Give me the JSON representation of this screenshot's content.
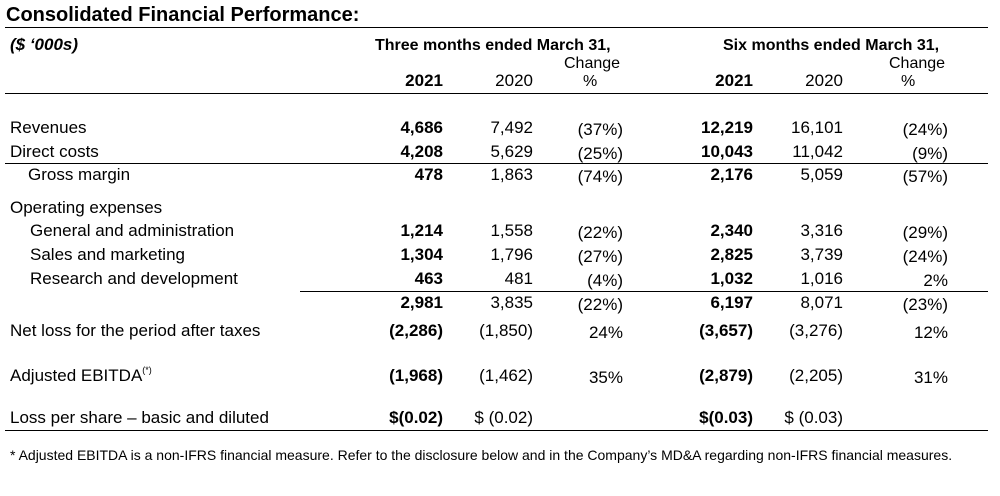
{
  "title": "Consolidated Financial Performance:",
  "unit": "($ ‘000s)",
  "headers": {
    "three_months": "Three months ended March 31,",
    "six_months": "Six months ended March 31,",
    "change": "Change",
    "pct": "%",
    "y2021": "2021",
    "y2020": "2020"
  },
  "rows": {
    "revenues": {
      "label": "Revenues",
      "q21": "4,686",
      "q20": "7,492",
      "qc": "(37%)",
      "s21": "12,219",
      "s20": "16,101",
      "sc": "(24%)"
    },
    "direct_costs": {
      "label": "Direct costs",
      "q21": "4,208",
      "q20": "5,629",
      "qc": "(25%)",
      "s21": "10,043",
      "s20": "11,042",
      "sc": "(9%)"
    },
    "gross_margin": {
      "label": "Gross margin",
      "q21": "478",
      "q20": "1,863",
      "qc": "(74%)",
      "s21": "2,176",
      "s20": "5,059",
      "sc": "(57%)"
    },
    "opex_heading": {
      "label": "Operating expenses"
    },
    "gen_admin": {
      "label": "General and administration",
      "q21": "1,214",
      "q20": "1,558",
      "qc": "(22%)",
      "s21": "2,340",
      "s20": "3,316",
      "sc": "(29%)"
    },
    "sales_mkt": {
      "label": "Sales and marketing",
      "q21": "1,304",
      "q20": "1,796",
      "qc": "(27%)",
      "s21": "2,825",
      "s20": "3,739",
      "sc": "(24%)"
    },
    "rnd": {
      "label": "Research and development",
      "q21": "463",
      "q20": "481",
      "qc": "(4%)",
      "s21": "1,032",
      "s20": "1,016",
      "sc": "2%"
    },
    "opex_total": {
      "q21": "2,981",
      "q20": "3,835",
      "qc": "(22%)",
      "s21": "6,197",
      "s20": "8,071",
      "sc": "(23%)"
    },
    "net_loss": {
      "label": "Net loss for the period after taxes",
      "q21": "(2,286)",
      "q20": "(1,850)",
      "qc": "24%",
      "s21": "(3,657)",
      "s20": "(3,276)",
      "sc": "12%"
    },
    "ebitda": {
      "label": "Adjusted EBITDA",
      "sup": "(*)",
      "q21": "(1,968)",
      "q20": "(1,462)",
      "qc": "35%",
      "s21": "(2,879)",
      "s20": "(2,205)",
      "sc": "31%"
    },
    "lps": {
      "label": "Loss per share – basic and diluted",
      "q21": "$(0.02)",
      "q20": "$ (0.02)",
      "s21": "$(0.03)",
      "s20": "$ (0.03)"
    }
  },
  "footnote": "* Adjusted EBITDA is a non-IFRS financial measure. Refer to the disclosure below and in the Company’s MD&A regarding non-IFRS financial measures."
}
